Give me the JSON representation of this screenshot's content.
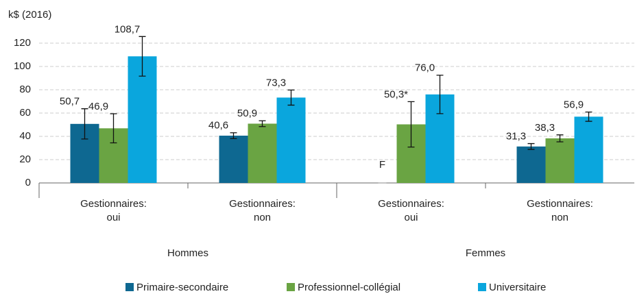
{
  "chart_data": {
    "type": "bar",
    "y_label": "k$ (2016)",
    "categories": [
      "Gestionnaires:\noui",
      "Gestionnaires:\nnon",
      "Gestionnaires:\noui",
      "Gestionnaires:\nnon"
    ],
    "groups": [
      "Hommes",
      "Femmes"
    ],
    "series": [
      {
        "name": "Primaire-secondaire",
        "color": "#0e6891",
        "values": [
          50.7,
          40.6,
          null,
          31.3
        ],
        "errors": [
          13,
          2.5,
          null,
          2.5
        ],
        "value_labels": [
          "50,7",
          "40,6",
          "F",
          "31,3"
        ]
      },
      {
        "name": "Professionnel-collégial",
        "color": "#6aa443",
        "values": [
          46.9,
          50.9,
          50.3,
          38.3
        ],
        "errors": [
          12.5,
          2.5,
          19.5,
          3
        ],
        "value_labels": [
          "46,9",
          "50,9",
          "50,3*",
          "38,3"
        ]
      },
      {
        "name": "Universitaire",
        "color": "#0aa6dd",
        "values": [
          108.7,
          73.3,
          76.0,
          56.9
        ],
        "errors": [
          17,
          6.5,
          16.5,
          4
        ],
        "value_labels": [
          "108,7",
          "73,3",
          "76,0",
          "56,9"
        ]
      }
    ],
    "ylim": [
      0,
      130
    ],
    "yticks": [
      0,
      20,
      40,
      60,
      80,
      100,
      120
    ],
    "grid": true
  }
}
